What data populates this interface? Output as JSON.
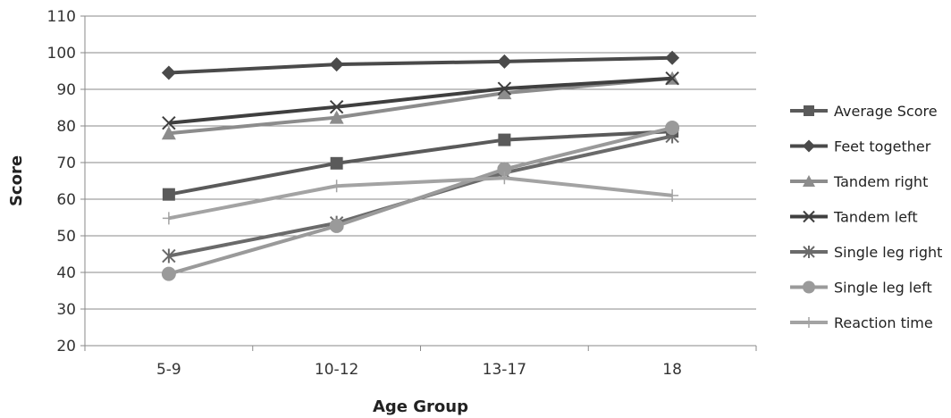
{
  "chart_data": {
    "type": "line",
    "categories": [
      "5-9",
      "10-12",
      "13-17",
      "18"
    ],
    "xlabel": "Age Group",
    "ylabel": "Score",
    "ylim": [
      20,
      110
    ],
    "yticks": [
      20,
      30,
      40,
      50,
      60,
      70,
      80,
      90,
      100,
      110
    ],
    "grid": "horizontal",
    "legend_position": "right",
    "series": [
      {
        "name": "Average Score",
        "values": [
          61.3,
          69.8,
          76.2,
          78.5
        ],
        "marker": "square",
        "color": "#5a5a5a"
      },
      {
        "name": "Feet together",
        "values": [
          94.5,
          96.8,
          97.6,
          98.6
        ],
        "marker": "diamond",
        "color": "#4a4a4a"
      },
      {
        "name": "Tandem right",
        "values": [
          78.0,
          82.3,
          89.0,
          93.0
        ],
        "marker": "triangle",
        "color": "#8c8c8c"
      },
      {
        "name": "Tandem left",
        "values": [
          80.8,
          85.2,
          90.2,
          93.0
        ],
        "marker": "x",
        "color": "#3f3f3f"
      },
      {
        "name": "Single leg right",
        "values": [
          44.5,
          53.5,
          67.2,
          77.2
        ],
        "marker": "star",
        "color": "#6a6a6a"
      },
      {
        "name": "Single leg left",
        "values": [
          39.6,
          52.7,
          68.2,
          79.5
        ],
        "marker": "circle",
        "color": "#9a9a9a"
      },
      {
        "name": "Reaction time",
        "values": [
          54.8,
          63.6,
          65.8,
          61.0
        ],
        "marker": "plus",
        "color": "#a3a3a3"
      }
    ]
  }
}
